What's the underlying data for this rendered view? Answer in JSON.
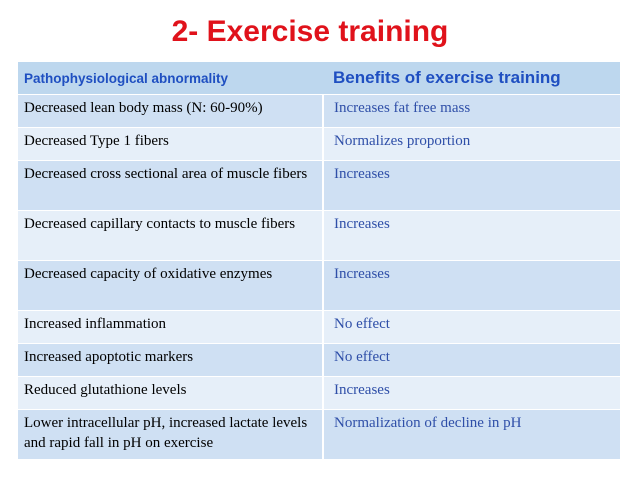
{
  "title": "2- Exercise training",
  "table": {
    "headers": {
      "left": "Pathophysiological abnormality",
      "right": "Benefits of exercise training"
    },
    "rows": [
      {
        "left": "Decreased lean body mass (N: 60-90%)",
        "right": "Increases fat free mass"
      },
      {
        "left": "Decreased Type 1 fibers",
        "right": "Normalizes proportion"
      },
      {
        "left": "Decreased cross sectional area of muscle fibers",
        "right": "Increases"
      },
      {
        "left": "Decreased capillary contacts to muscle fibers",
        "right": "Increases"
      },
      {
        "left": "Decreased capacity of oxidative enzymes",
        "right": "Increases"
      },
      {
        "left": "Increased inflammation",
        "right": "No effect"
      },
      {
        "left": "Increased apoptotic markers",
        "right": "No effect"
      },
      {
        "left": "Reduced glutathione levels",
        "right": "Increases"
      },
      {
        "left": "Lower intracellular pH, increased lactate levels and rapid fall in pH on exercise",
        "right": "Normalization of decline in pH"
      }
    ]
  },
  "colors": {
    "title": "#e0121b",
    "header_text": "#1f4fc1",
    "header_bg": "#bdd7ee",
    "row_bg_odd": "#cfe0f3",
    "row_bg_even": "#e6eff9",
    "benefit_text": "#2f4fa8"
  }
}
